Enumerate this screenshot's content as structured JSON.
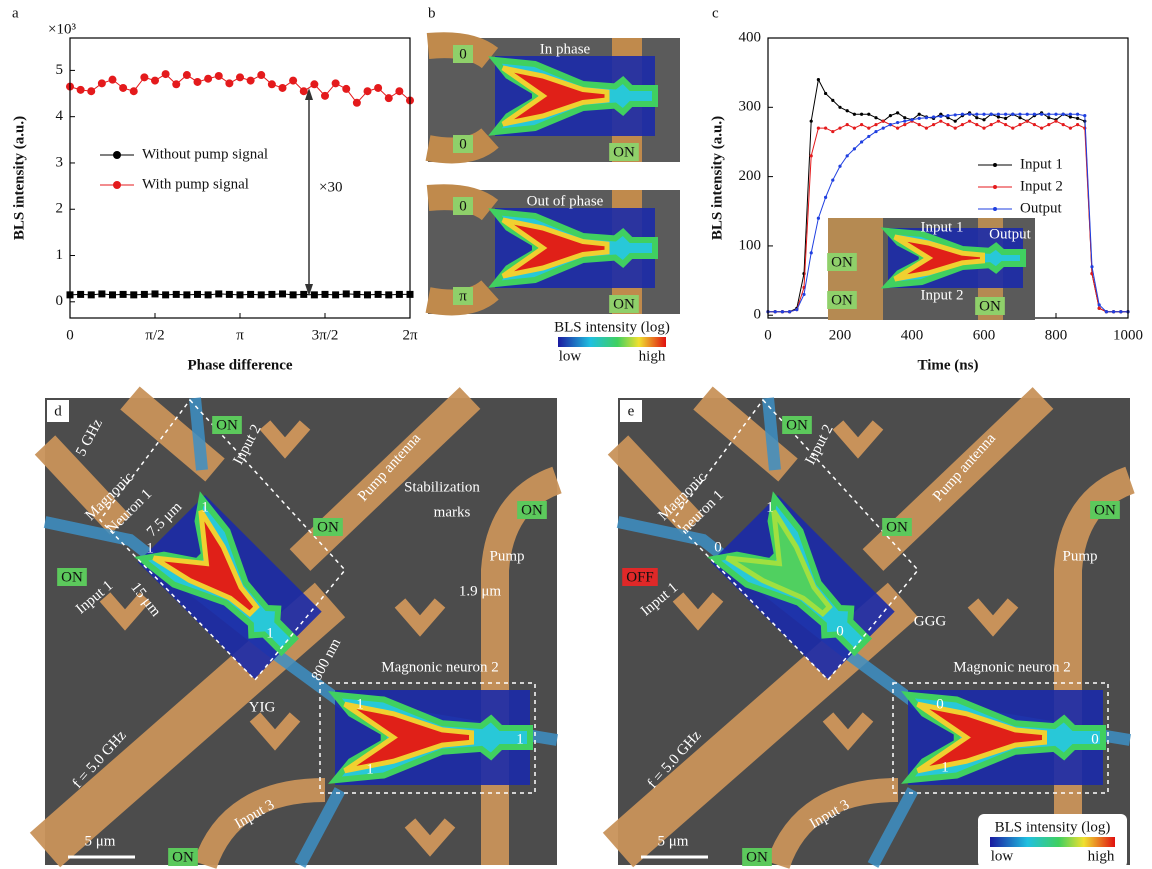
{
  "chart_data": [
    {
      "type": "line",
      "panel_label": "a",
      "x_label": "Phase difference",
      "y_label": "BLS intensity (a.u.)",
      "exponent_label": "×10³",
      "annotation": "×30",
      "x": [
        0,
        0.1963,
        0.3927,
        0.589,
        0.7854,
        0.9817,
        1.1781,
        1.3744,
        1.5708,
        1.7671,
        1.9635,
        2.1598,
        2.3562,
        2.5525,
        2.7489,
        2.9452,
        3.1416,
        3.3379,
        3.5343,
        3.7306,
        3.927,
        4.1233,
        4.3197,
        4.516,
        4.7124,
        4.9087,
        5.1051,
        5.3014,
        5.4978,
        5.6941,
        5.8905,
        6.0868,
        6.2832
      ],
      "series": [
        {
          "name": "Without pump signal",
          "color": "#000000",
          "marker": "square",
          "values": [
            0.15,
            0.16,
            0.15,
            0.17,
            0.15,
            0.16,
            0.15,
            0.16,
            0.17,
            0.15,
            0.16,
            0.15,
            0.16,
            0.15,
            0.17,
            0.16,
            0.15,
            0.16,
            0.15,
            0.16,
            0.17,
            0.15,
            0.16,
            0.15,
            0.16,
            0.15,
            0.17,
            0.16,
            0.15,
            0.16,
            0.15,
            0.16,
            0.16
          ]
        },
        {
          "name": "With pump signal",
          "color": "#e41a1c",
          "marker": "circle",
          "values": [
            4.65,
            4.58,
            4.55,
            4.72,
            4.8,
            4.62,
            4.55,
            4.85,
            4.78,
            4.92,
            4.7,
            4.9,
            4.75,
            4.82,
            4.88,
            4.72,
            4.85,
            4.78,
            4.9,
            4.7,
            4.62,
            4.78,
            4.55,
            4.7,
            4.45,
            4.72,
            4.6,
            4.3,
            4.55,
            4.62,
            4.4,
            4.55,
            4.35
          ]
        }
      ],
      "xlim": [
        0,
        6.2832
      ],
      "ylim": [
        -0.35,
        5.7
      ],
      "xticks": [
        0,
        {
          "value": 1.5708,
          "label": "π/2"
        },
        {
          "value": 3.1416,
          "label": "π"
        },
        {
          "value": 4.7124,
          "label": "3π/2"
        },
        {
          "value": 6.2832,
          "label": "2π"
        }
      ],
      "yticks": [
        0,
        1,
        2,
        3,
        4,
        5
      ],
      "legend": "center-left"
    },
    {
      "type": "line",
      "panel_label": "c",
      "x_label": "Time (ns)",
      "y_label": "BLS intensity (a.u.)",
      "x": [
        0,
        20,
        40,
        60,
        80,
        100,
        120,
        140,
        160,
        180,
        200,
        220,
        240,
        260,
        280,
        300,
        320,
        340,
        360,
        380,
        400,
        420,
        440,
        460,
        480,
        500,
        520,
        540,
        560,
        580,
        600,
        620,
        640,
        660,
        680,
        700,
        720,
        740,
        760,
        780,
        800,
        820,
        840,
        860,
        880,
        900,
        920,
        940,
        960,
        980,
        1000
      ],
      "series": [
        {
          "name": "Input 1",
          "color": "#000000",
          "marker": "dot",
          "values": [
            5,
            5,
            5,
            5,
            10,
            60,
            280,
            340,
            320,
            310,
            300,
            295,
            290,
            290,
            290,
            285,
            280,
            288,
            292,
            285,
            282,
            290,
            286,
            284,
            290,
            285,
            280,
            288,
            292,
            285,
            282,
            290,
            286,
            284,
            290,
            285,
            280,
            288,
            292,
            285,
            282,
            290,
            286,
            284,
            280,
            60,
            10,
            5,
            5,
            5,
            5
          ]
        },
        {
          "name": "Input 2",
          "color": "#e41a1c",
          "marker": "dot",
          "values": [
            5,
            5,
            5,
            5,
            8,
            40,
            230,
            270,
            270,
            265,
            270,
            275,
            270,
            275,
            270,
            275,
            280,
            275,
            270,
            275,
            280,
            275,
            270,
            275,
            280,
            275,
            270,
            275,
            280,
            275,
            270,
            275,
            280,
            275,
            270,
            275,
            280,
            275,
            270,
            275,
            280,
            275,
            270,
            275,
            270,
            60,
            10,
            5,
            5,
            5,
            5
          ]
        },
        {
          "name": "Output",
          "color": "#1f3fe0",
          "marker": "dot",
          "values": [
            5,
            5,
            5,
            5,
            8,
            30,
            90,
            140,
            170,
            195,
            215,
            230,
            240,
            250,
            258,
            265,
            270,
            275,
            278,
            280,
            282,
            284,
            285,
            286,
            287,
            288,
            289,
            290,
            290,
            290,
            290,
            290,
            290,
            290,
            290,
            290,
            290,
            290,
            290,
            290,
            290,
            290,
            290,
            290,
            288,
            70,
            15,
            5,
            5,
            5,
            5
          ]
        }
      ],
      "xlim": [
        0,
        1000
      ],
      "ylim": [
        -4,
        400
      ],
      "xticks": [
        0,
        200,
        400,
        600,
        800,
        1000
      ],
      "yticks": [
        0,
        100,
        200,
        300,
        400
      ],
      "legend": "center-right",
      "inset": {
        "tags": [
          "ON",
          "ON",
          "ON"
        ],
        "labels": [
          "Input 1",
          "Input 2",
          "Output"
        ]
      }
    }
  ],
  "panels": {
    "b": {
      "panel_label": "b",
      "top": {
        "title": "In phase",
        "tags": [
          "0",
          "0",
          "ON"
        ]
      },
      "bottom": {
        "title": "Out of phase",
        "tags": [
          "0",
          "π",
          "ON"
        ]
      },
      "colorbar": {
        "title": "BLS intensity (log)",
        "low": "low",
        "high": "high"
      }
    },
    "d": {
      "panel_label": "d",
      "labels": [
        "5 GHz",
        "Magnonic",
        "Neuron 1",
        "7.5 μm",
        "15 μm",
        "Input 2",
        "Pump antenna",
        "Stabilization",
        "marks",
        "Pump",
        "Input 1",
        "1.9 μm",
        "800 nm",
        "Magnonic neuron 2",
        "YIG",
        "f = 5.0 GHz",
        "Input 3",
        "5 μm"
      ],
      "tags": [
        "ON",
        "ON",
        "ON",
        "ON",
        "ON"
      ],
      "neuron_marks": [
        "1",
        "1",
        "1",
        "1",
        "1",
        "1"
      ]
    },
    "e": {
      "panel_label": "e",
      "labels": [
        "Input 2",
        "Pump antenna",
        "Magnonic",
        "neuron 1",
        "Input 1",
        "Pump",
        "GGG",
        "Magnonic neuron 2",
        "f = 5.0 GHz",
        "Input 3",
        "5 μm"
      ],
      "tags": [
        "ON",
        "ON",
        "ON",
        "ON",
        "OFF"
      ],
      "neuron_marks": [
        "1",
        "0",
        "0",
        "0",
        "1",
        "0"
      ],
      "colorbar": {
        "title": "BLS intensity (log)",
        "low": "low",
        "high": "high"
      }
    }
  }
}
